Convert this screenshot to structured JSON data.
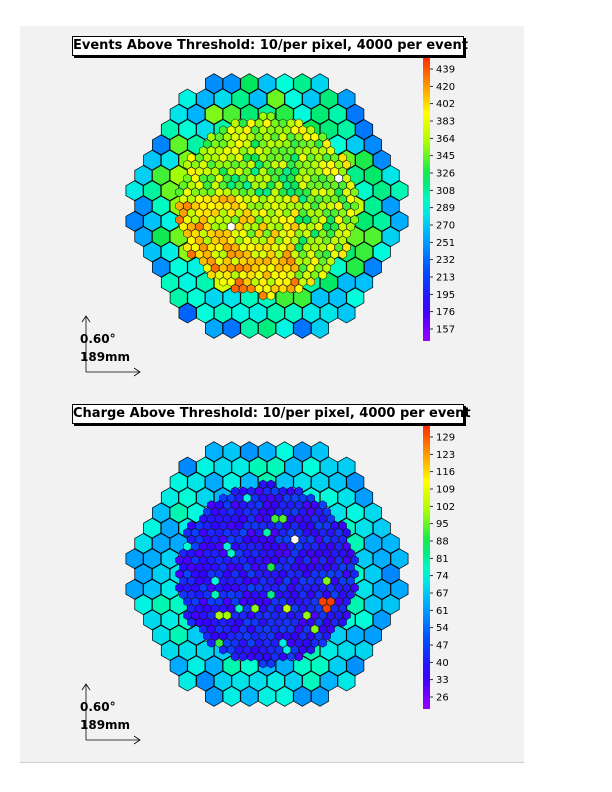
{
  "chart_data": [
    {
      "type": "heatmap",
      "title": "Events Above Threshold: 10/per pixel, 4000 per event",
      "colorbar": {
        "min": 157,
        "max": 439,
        "tick_labels": [
          "439",
          "420",
          "402",
          "383",
          "364",
          "345",
          "326",
          "308",
          "289",
          "270",
          "251",
          "232",
          "213",
          "195",
          "176",
          "157"
        ]
      },
      "scale": {
        "angle": "0.60°",
        "length": "189mm"
      },
      "pattern": "hot-outer-ring",
      "seed": 11
    },
    {
      "type": "heatmap",
      "title": "Charge Above Threshold: 10/per pixel, 4000 per event",
      "colorbar": {
        "min": 26,
        "max": 129,
        "tick_labels": [
          "129",
          "123",
          "116",
          "109",
          "102",
          "95",
          "88",
          "81",
          "74",
          "67",
          "61",
          "54",
          "47",
          "40",
          "33",
          "26"
        ]
      },
      "scale": {
        "angle": "0.60°",
        "length": "189mm"
      },
      "pattern": "cool-center",
      "seed": 29
    }
  ]
}
